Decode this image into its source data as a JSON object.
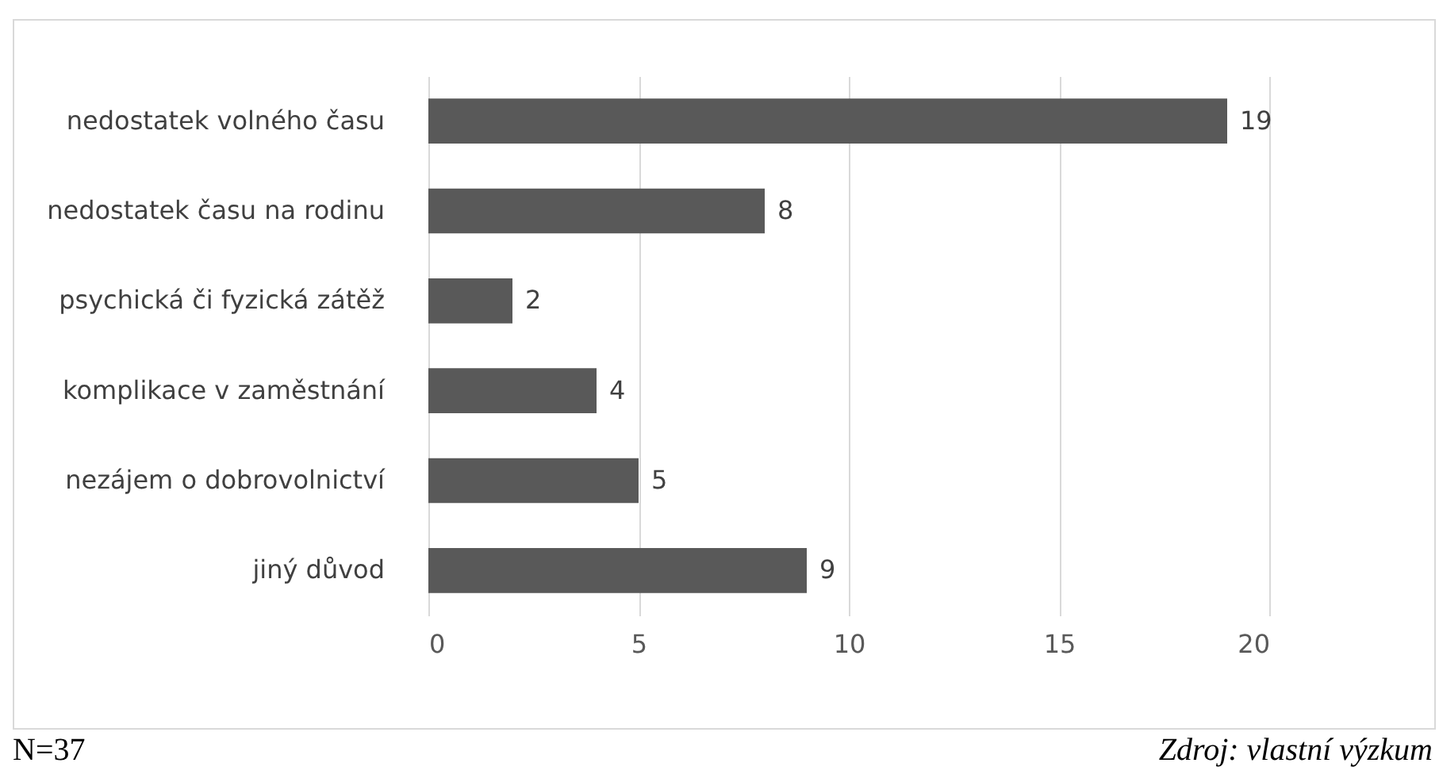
{
  "chart_data": {
    "type": "bar",
    "orientation": "horizontal",
    "categories": [
      "nedostatek volného času",
      "nedostatek času na rodinu",
      "psychická či fyzická zátěž",
      "komplikace v zaměstnání",
      "nezájem o dobrovolnictví",
      "jiný důvod"
    ],
    "values": [
      19,
      8,
      2,
      4,
      5,
      9
    ],
    "color": "#595959",
    "xlim": [
      0,
      20
    ],
    "xticks": [
      0,
      5,
      10,
      15,
      20
    ],
    "grid": "x",
    "data_labels": true,
    "annotations": [
      "N=37",
      "Zdroj: vlastní výzkum"
    ]
  }
}
